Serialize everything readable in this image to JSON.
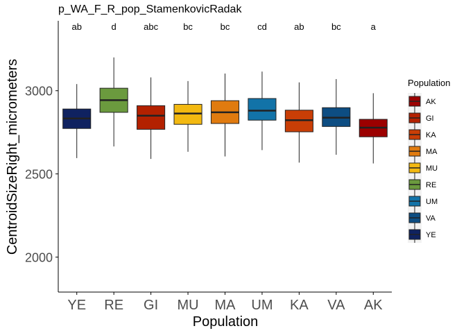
{
  "chart_data": {
    "type": "box",
    "title": "p_WA_F_R_pop_StamenkovicRadak",
    "xlabel": "Population",
    "ylabel": "CentroidSizeRight_micrometers",
    "ylim": [
      1790,
      3420
    ],
    "yticks": [
      2000,
      2500,
      3000
    ],
    "grid": false,
    "categories": [
      "YE",
      "RE",
      "GI",
      "MU",
      "MA",
      "UM",
      "KA",
      "VA",
      "AK"
    ],
    "boxes": [
      {
        "category": "YE",
        "min": 2595,
        "q1": 2773,
        "median": 2833,
        "q3": 2890,
        "max": 3040,
        "color": "#0f2260",
        "letter": "ab"
      },
      {
        "category": "RE",
        "min": 2665,
        "q1": 2870,
        "median": 2943,
        "q3": 3015,
        "max": 3200,
        "color": "#6b9a3e",
        "letter": "d"
      },
      {
        "category": "GI",
        "min": 2590,
        "q1": 2768,
        "median": 2850,
        "q3": 2910,
        "max": 3080,
        "color": "#b32100",
        "letter": "abc"
      },
      {
        "category": "MU",
        "min": 2633,
        "q1": 2798,
        "median": 2863,
        "q3": 2918,
        "max": 3058,
        "color": "#f3b911",
        "letter": "bc"
      },
      {
        "category": "MA",
        "min": 2605,
        "q1": 2803,
        "median": 2870,
        "q3": 2940,
        "max": 3103,
        "color": "#e07b0f",
        "letter": "bc"
      },
      {
        "category": "UM",
        "min": 2643,
        "q1": 2823,
        "median": 2880,
        "q3": 2953,
        "max": 3115,
        "color": "#1273a8",
        "letter": "cd"
      },
      {
        "category": "KA",
        "min": 2568,
        "q1": 2753,
        "median": 2823,
        "q3": 2883,
        "max": 3050,
        "color": "#c93e06",
        "letter": "ab"
      },
      {
        "category": "VA",
        "min": 2615,
        "q1": 2785,
        "median": 2838,
        "q3": 2898,
        "max": 3070,
        "color": "#0d4d82",
        "letter": "bc"
      },
      {
        "category": "AK",
        "min": 2563,
        "q1": 2723,
        "median": 2778,
        "q3": 2828,
        "max": 2985,
        "color": "#9c0000",
        "letter": "a"
      }
    ],
    "legend": {
      "title": "Population",
      "placement": "right",
      "entries": [
        {
          "label": "AK",
          "color": "#9c0000"
        },
        {
          "label": "GI",
          "color": "#b32100"
        },
        {
          "label": "KA",
          "color": "#c93e06"
        },
        {
          "label": "MA",
          "color": "#e07b0f"
        },
        {
          "label": "MU",
          "color": "#f3b911"
        },
        {
          "label": "RE",
          "color": "#6b9a3e"
        },
        {
          "label": "UM",
          "color": "#1273a8"
        },
        {
          "label": "VA",
          "color": "#0d4d82"
        },
        {
          "label": "YE",
          "color": "#0f2260"
        }
      ]
    }
  }
}
